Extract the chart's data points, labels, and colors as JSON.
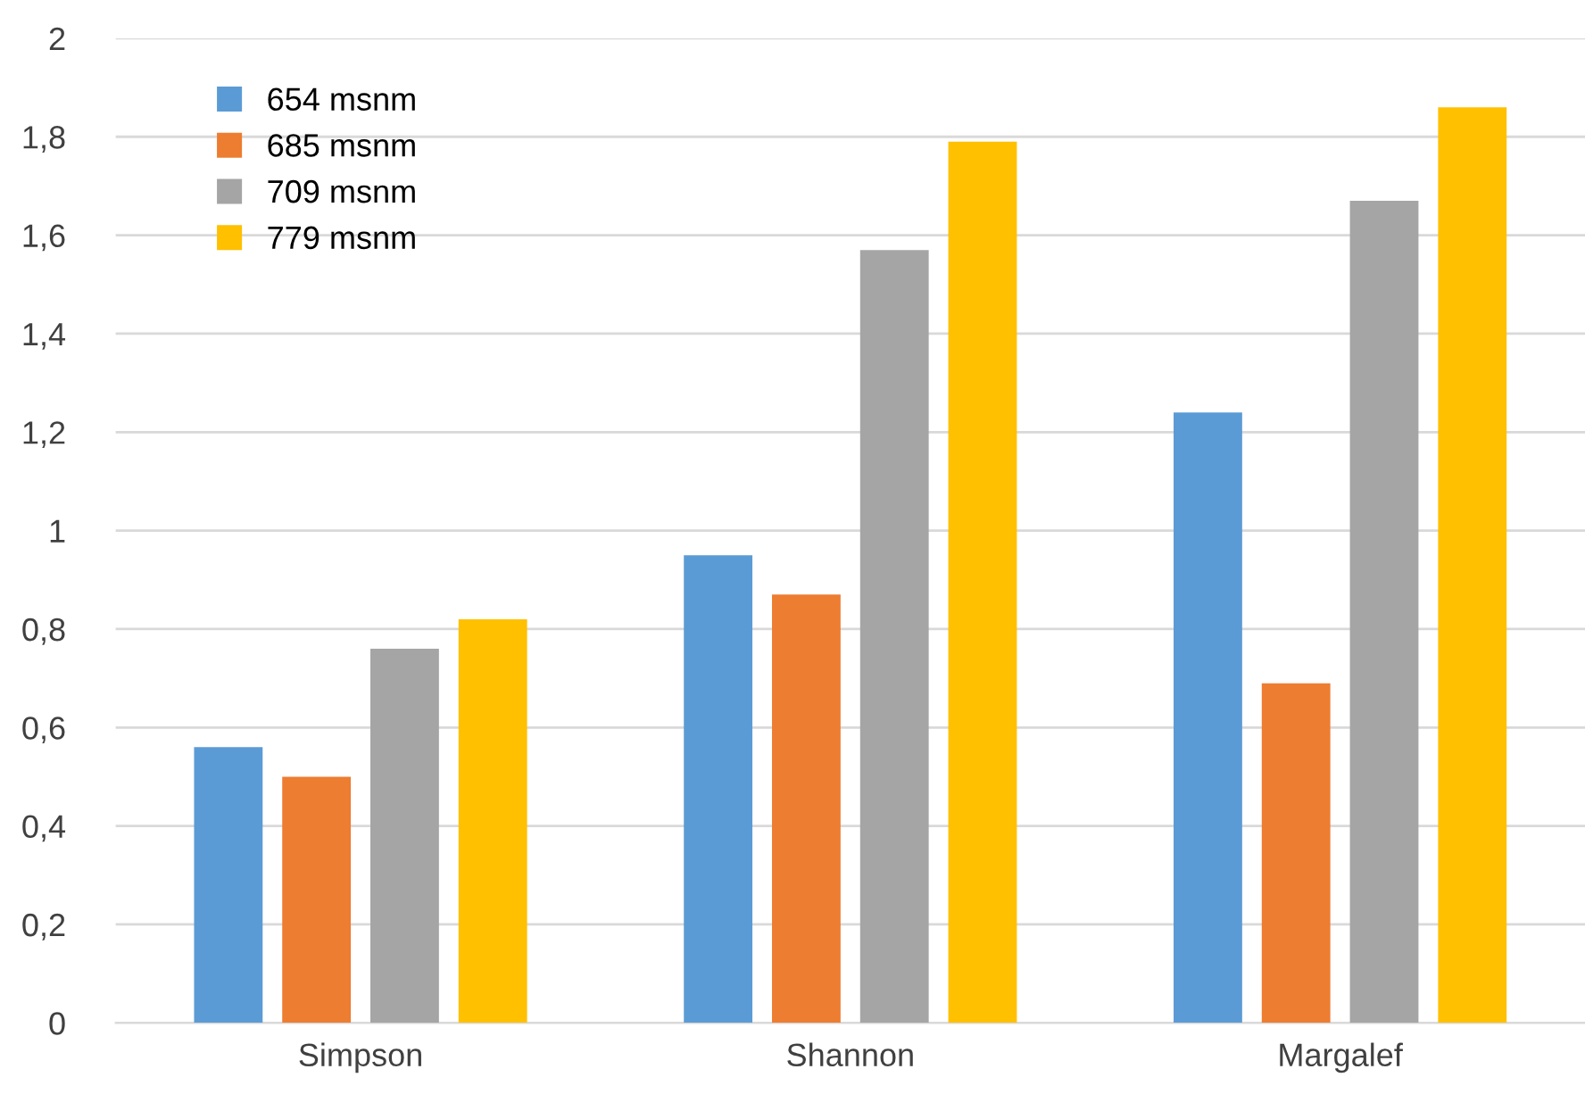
{
  "chart_data": {
    "type": "bar",
    "categories": [
      "Simpson",
      "Shannon",
      "Margalef"
    ],
    "series": [
      {
        "name": "654 msnm",
        "color": "#5b9bd5",
        "values": [
          0.56,
          0.95,
          1.24
        ]
      },
      {
        "name": "685 msnm",
        "color": "#ed7d31",
        "values": [
          0.5,
          0.87,
          0.69
        ]
      },
      {
        "name": "709 msnm",
        "color": "#a5a5a5",
        "values": [
          0.76,
          1.57,
          1.67
        ]
      },
      {
        "name": "779 msnm",
        "color": "#ffc000",
        "values": [
          0.82,
          1.79,
          1.86
        ]
      }
    ],
    "ylim": [
      0,
      2
    ],
    "yticks": [
      0,
      {
        "value": 0.2,
        "label": "0,2"
      },
      {
        "value": 0.4,
        "label": "0,4"
      },
      {
        "value": 0.6,
        "label": "0,6"
      },
      {
        "value": 0.8,
        "label": "0,8"
      },
      1,
      {
        "value": 1.2,
        "label": "1,2"
      },
      {
        "value": 1.4,
        "label": "1,4"
      },
      {
        "value": 1.6,
        "label": "1,6"
      },
      {
        "value": 1.8,
        "label": "1,8"
      },
      2
    ],
    "grid": "y",
    "legend": "top left"
  }
}
